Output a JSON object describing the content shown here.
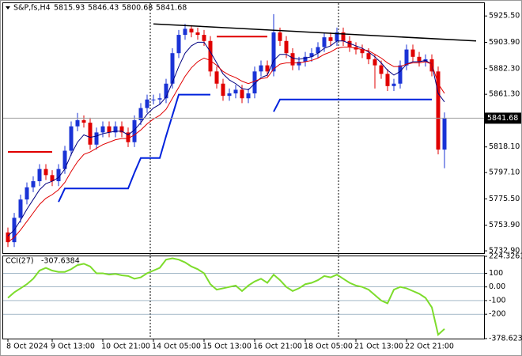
{
  "chart_data": [
    {
      "type": "candlestick",
      "title": "S&P,fs,H4",
      "header_labels": [
        "5815.93",
        "5846.43",
        "5800.68",
        "5841.68"
      ],
      "last_price_label": "5841.68",
      "categories": [
        "8 Oct 2024",
        null,
        null,
        null,
        null,
        null,
        null,
        "9 Oct 13:00",
        null,
        null,
        null,
        null,
        null,
        null,
        null,
        "10 Oct 21:00",
        null,
        null,
        null,
        null,
        null,
        null,
        null,
        "14 Oct 05:00",
        null,
        null,
        null,
        null,
        null,
        null,
        null,
        "15 Oct 13:00",
        null,
        null,
        null,
        null,
        null,
        null,
        null,
        "16 Oct 21:00",
        null,
        null,
        null,
        null,
        null,
        null,
        null,
        "18 Oct 05:00",
        null,
        null,
        null,
        null,
        null,
        null,
        null,
        "21 Oct 13:00",
        null,
        null,
        null,
        null,
        null,
        null,
        null,
        "22 Oct 21:00",
        null,
        null,
        null,
        null,
        null,
        null
      ],
      "open": [
        5748,
        5740,
        5760,
        5775,
        5785,
        5790,
        5800,
        5795,
        5790,
        5800,
        5815,
        5835,
        5840,
        5838,
        5820,
        5830,
        5835,
        5830,
        5835,
        5830,
        5822,
        5840,
        5850,
        5857,
        5857,
        5858,
        5870,
        5895,
        5910,
        5915,
        5912,
        5910,
        5905,
        5880,
        5870,
        5860,
        5862,
        5865,
        5858,
        5862,
        5880,
        5885,
        5880,
        5912,
        5905,
        5895,
        5885,
        5888,
        5892,
        5895,
        5900,
        5908,
        5905,
        5912,
        5905,
        5900,
        5898,
        5895,
        5890,
        5885,
        5878,
        5868,
        5870,
        5885,
        5898,
        5892,
        5888,
        5890,
        5880,
        5815.93
      ],
      "high": [
        5752,
        5764,
        5779,
        5789,
        5794,
        5804,
        5804,
        5799,
        5804,
        5819,
        5839,
        5846,
        5844,
        5842,
        5834,
        5839,
        5839,
        5839,
        5839,
        5834,
        5844,
        5854,
        5861,
        5861,
        5862,
        5874,
        5899,
        5914,
        5919,
        5918,
        5916,
        5914,
        5909,
        5884,
        5874,
        5866,
        5869,
        5869,
        5866,
        5884,
        5889,
        5889,
        5927,
        5916,
        5909,
        5899,
        5892,
        5896,
        5899,
        5904,
        5912,
        5912,
        5916,
        5916,
        5909,
        5904,
        5902,
        5899,
        5894,
        5889,
        5882,
        5874,
        5889,
        5902,
        5902,
        5896,
        5894,
        5894,
        5884,
        5846.43
      ],
      "low": [
        5736,
        5736,
        5756,
        5771,
        5781,
        5786,
        5791,
        5786,
        5786,
        5796,
        5811,
        5831,
        5834,
        5816,
        5816,
        5826,
        5826,
        5826,
        5826,
        5818,
        5818,
        5836,
        5846,
        5853,
        5853,
        5854,
        5866,
        5891,
        5906,
        5908,
        5906,
        5901,
        5876,
        5866,
        5856,
        5856,
        5858,
        5854,
        5854,
        5858,
        5876,
        5876,
        5876,
        5901,
        5891,
        5881,
        5881,
        5884,
        5888,
        5891,
        5896,
        5901,
        5901,
        5901,
        5896,
        5894,
        5891,
        5886,
        5866,
        5874,
        5864,
        5864,
        5866,
        5881,
        5888,
        5884,
        5884,
        5876,
        5812,
        5800.68
      ],
      "close": [
        5740,
        5760,
        5775,
        5785,
        5790,
        5800,
        5795,
        5790,
        5800,
        5815,
        5835,
        5840,
        5838,
        5820,
        5830,
        5835,
        5830,
        5835,
        5830,
        5822,
        5840,
        5850,
        5857,
        5857,
        5858,
        5870,
        5895,
        5910,
        5915,
        5912,
        5910,
        5905,
        5880,
        5870,
        5860,
        5862,
        5865,
        5858,
        5862,
        5880,
        5885,
        5880,
        5912,
        5905,
        5895,
        5885,
        5888,
        5892,
        5895,
        5900,
        5908,
        5905,
        5912,
        5905,
        5900,
        5898,
        5895,
        5890,
        5885,
        5878,
        5868,
        5870,
        5885,
        5898,
        5892,
        5888,
        5890,
        5880,
        5815.93,
        5841.68
      ],
      "up_color": "#1a33d6",
      "down_color": "#e00000",
      "series": [
        {
          "color": "#000080",
          "width": 1,
          "values": [
            5745,
            5750,
            5758,
            5767,
            5775,
            5783,
            5788,
            5790,
            5793,
            5800,
            5812,
            5822,
            5828,
            5826,
            5827,
            5829,
            5830,
            5831,
            5831,
            5828,
            5832,
            5838,
            5845,
            5850,
            5853,
            5859,
            5871,
            5884,
            5895,
            5901,
            5904,
            5904,
            5896,
            5887,
            5878,
            5873,
            5870,
            5866,
            5865,
            5870,
            5875,
            5877,
            5889,
            5894,
            5894,
            5891,
            5890,
            5891,
            5892,
            5895,
            5899,
            5901,
            5905,
            5905,
            5903,
            5901,
            5899,
            5896,
            5892,
            5887,
            5881,
            5877,
            5880,
            5886,
            5888,
            5888,
            5889,
            5886,
            5862,
            5855
          ]
        },
        {
          "color": "#e00000",
          "width": 1,
          "values": [
            5740,
            5744,
            5750,
            5757,
            5764,
            5771,
            5776,
            5779,
            5783,
            5789,
            5798,
            5806,
            5812,
            5814,
            5817,
            5820,
            5822,
            5824,
            5825,
            5825,
            5828,
            5832,
            5837,
            5841,
            5844,
            5849,
            5858,
            5867,
            5876,
            5883,
            5888,
            5891,
            5889,
            5885,
            5880,
            5877,
            5875,
            5872,
            5870,
            5872,
            5874,
            5875,
            5882,
            5886,
            5887,
            5887,
            5887,
            5888,
            5889,
            5891,
            5894,
            5896,
            5899,
            5900,
            5900,
            5899,
            5898,
            5897,
            5894,
            5891,
            5887,
            5884,
            5884,
            5886,
            5887,
            5887,
            5888,
            5886,
            5870,
            5862
          ]
        },
        {
          "color": "#0022dd",
          "width": 2,
          "values": [
            null,
            null,
            null,
            null,
            null,
            null,
            null,
            null,
            5773,
            5784,
            5784,
            5784,
            5784,
            5784,
            5784,
            5784,
            5784,
            5784,
            5784,
            5784,
            5797,
            5809,
            5809,
            5809,
            5809,
            5827,
            5844,
            5861,
            5861,
            5861,
            5861,
            5861,
            5861,
            null,
            null,
            null,
            null,
            null,
            null,
            null,
            null,
            null,
            5847,
            5857,
            5857,
            5857,
            5857,
            5857,
            5857,
            5857,
            5857,
            5857,
            5857,
            5857,
            5857,
            5857,
            5857,
            5857,
            5857,
            5857,
            5857,
            5857,
            5857,
            5857,
            5857,
            5857,
            5857,
            5857,
            null,
            null
          ]
        },
        {
          "color": "#e00000",
          "width": 2,
          "values": [
            5814,
            5814,
            5814,
            5814,
            5814,
            5814,
            5814,
            5814,
            null,
            null,
            null,
            null,
            null,
            null,
            null,
            null,
            null,
            null,
            null,
            null,
            null,
            null,
            null,
            null,
            null,
            null,
            null,
            null,
            null,
            null,
            null,
            null,
            null,
            5908.6,
            5908.6,
            5908.6,
            5908.6,
            5908.6,
            5908.6,
            5908.6,
            5908.6,
            5908.6,
            null,
            null,
            null,
            null,
            null,
            null,
            null,
            null,
            null,
            null,
            null,
            null,
            null,
            null,
            null,
            null,
            null,
            null,
            null,
            null,
            null,
            null,
            null,
            null,
            null,
            null,
            null,
            null
          ]
        }
      ],
      "trendline": {
        "color": "#000000",
        "x": [
          23,
          74
        ],
        "values": [
          5919,
          5905
        ]
      },
      "ylim": [
        5731,
        5936
      ],
      "yticks": [
        {
          "value": 5925.5,
          "label": "5925.50"
        },
        {
          "value": 5903.9,
          "label": "5903.90"
        },
        {
          "value": 5882.3,
          "label": "5882.30"
        },
        {
          "value": 5861.3,
          "label": "5861.30"
        },
        {
          "value": 5818.1,
          "label": "5818.10"
        },
        {
          "value": 5797.1,
          "label": "5797.10"
        },
        {
          "value": 5775.5,
          "label": "5775.50"
        },
        {
          "value": 5753.9,
          "label": "5753.90"
        },
        {
          "value": 5732.9,
          "label": "5732.90"
        }
      ]
    },
    {
      "type": "line",
      "title": "CCI(27)",
      "last_label": "-307.6384",
      "color": "#7ddc2c",
      "values": [
        -80,
        -40,
        -10,
        20,
        60,
        120,
        140,
        120,
        110,
        110,
        130,
        160,
        170,
        150,
        100,
        100,
        90,
        95,
        85,
        80,
        60,
        70,
        100,
        120,
        140,
        200,
        210,
        200,
        180,
        150,
        130,
        100,
        20,
        -20,
        -10,
        0,
        10,
        -30,
        10,
        40,
        60,
        30,
        90,
        50,
        0,
        -30,
        -10,
        20,
        30,
        50,
        80,
        70,
        90,
        60,
        30,
        10,
        0,
        -20,
        -60,
        -100,
        -120,
        -20,
        0,
        -10,
        -30,
        -50,
        -80,
        -150,
        -350,
        -307.6384
      ],
      "ylim": [
        -378.6235,
        224.3261
      ],
      "yticks": [
        224.3261,
        100,
        {
          "value": 0,
          "label": "0.00"
        },
        -100,
        -200,
        -378.6235
      ]
    }
  ]
}
